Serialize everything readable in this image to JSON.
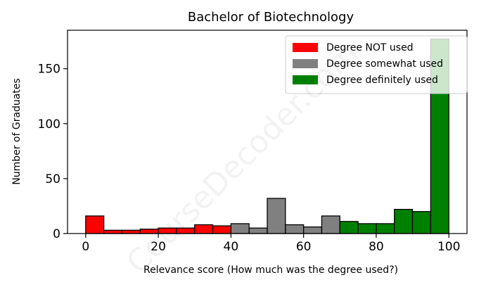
{
  "chart_data": {
    "type": "bar",
    "title": "Bachelor of Biotechnology",
    "xlabel": "Relevance score (How much was the degree used?)",
    "ylabel": "Number of Graduates",
    "xlim": [
      -5,
      105
    ],
    "ylim": [
      0,
      185
    ],
    "xticks": [
      0,
      20,
      40,
      60,
      80,
      100
    ],
    "yticks": [
      0,
      50,
      100,
      150
    ],
    "bin_width": 5,
    "grid": false,
    "legend_position": "top-right",
    "series": [
      {
        "name": "Degree NOT used",
        "color": "#ff0000",
        "bins": [
          {
            "start": 0,
            "value": 16
          },
          {
            "start": 5,
            "value": 3
          },
          {
            "start": 10,
            "value": 3
          },
          {
            "start": 15,
            "value": 4
          },
          {
            "start": 20,
            "value": 5
          },
          {
            "start": 25,
            "value": 5
          },
          {
            "start": 30,
            "value": 8
          },
          {
            "start": 35,
            "value": 7
          }
        ]
      },
      {
        "name": "Degree somewhat used",
        "color": "#808080",
        "bins": [
          {
            "start": 40,
            "value": 9
          },
          {
            "start": 45,
            "value": 5
          },
          {
            "start": 50,
            "value": 32
          },
          {
            "start": 55,
            "value": 8
          },
          {
            "start": 60,
            "value": 6
          },
          {
            "start": 65,
            "value": 16
          }
        ]
      },
      {
        "name": "Degree definitely used",
        "color": "#008000",
        "bins": [
          {
            "start": 70,
            "value": 11
          },
          {
            "start": 75,
            "value": 9
          },
          {
            "start": 80,
            "value": 9
          },
          {
            "start": 85,
            "value": 22
          },
          {
            "start": 90,
            "value": 20
          },
          {
            "start": 95,
            "value": 177
          }
        ]
      }
    ],
    "watermark": "CourseDecoder.com"
  }
}
